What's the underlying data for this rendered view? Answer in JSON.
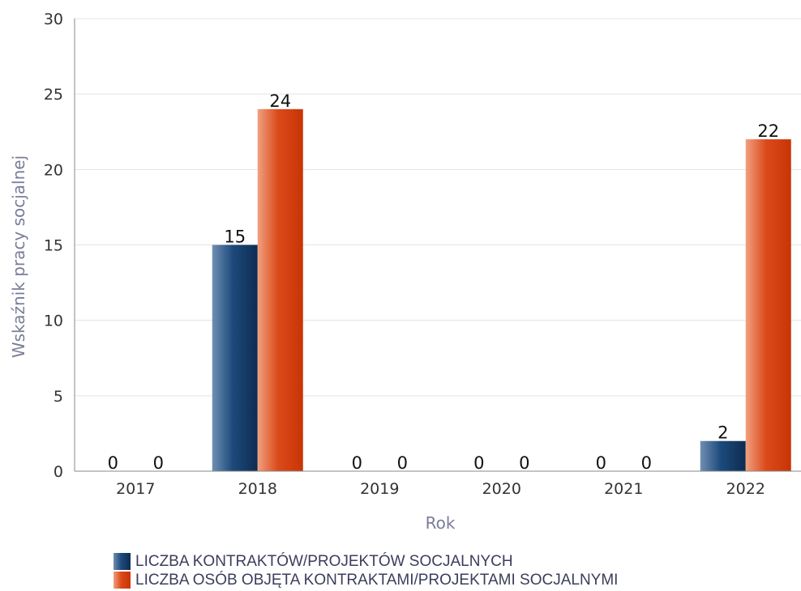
{
  "chart_data": {
    "type": "bar",
    "categories": [
      "2017",
      "2018",
      "2019",
      "2020",
      "2021",
      "2022"
    ],
    "series": [
      {
        "name": "LICZBA KONTRAKTÓW/PROJEKTÓW SOCJALNYCH",
        "values": [
          0,
          15,
          0,
          0,
          0,
          2
        ],
        "color": "#123a68"
      },
      {
        "name": "LICZBA OSÓB OBJĘTA KONTRAKTAMI/PROJEKTAMI SOCJALNYMI",
        "values": [
          0,
          24,
          0,
          0,
          0,
          22
        ],
        "color": "#d23a0c"
      }
    ],
    "xlabel": "Rok",
    "ylabel": "Wskaźnik pracy socjalnej",
    "ylim": [
      0,
      30
    ],
    "yticks": [
      0,
      5,
      10,
      15,
      20,
      25,
      30
    ],
    "grid": true,
    "legend_position": "bottom"
  }
}
